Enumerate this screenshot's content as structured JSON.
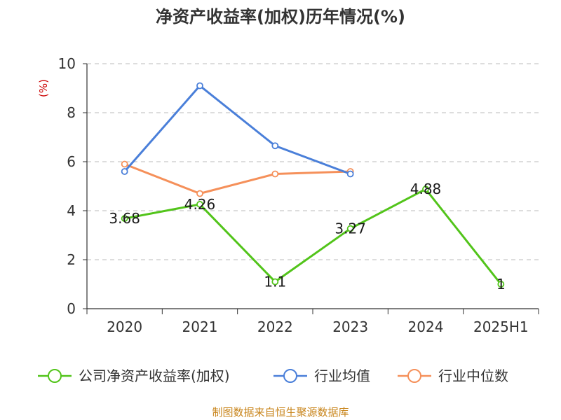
{
  "chart_data": {
    "type": "line",
    "title": "净资产收益率(加权)历年情况(%)",
    "ylabel": "(%)",
    "xlabel": "",
    "categories": [
      "2020",
      "2021",
      "2022",
      "2023",
      "2024",
      "2025H1"
    ],
    "ylim": [
      0,
      10
    ],
    "yticks": [
      0,
      2,
      4,
      6,
      8,
      10
    ],
    "grid": true,
    "legend_position": "bottom",
    "series": [
      {
        "name": "公司净资产收益率(加权)",
        "color": "#52c41a",
        "values": [
          3.68,
          4.26,
          1.1,
          3.27,
          4.88,
          1
        ],
        "labels": [
          "3.68",
          "4.26",
          "1.1",
          "3.27",
          "4.88",
          "1"
        ]
      },
      {
        "name": "行业均值",
        "color": "#4a7fd9",
        "values": [
          5.6,
          9.1,
          6.65,
          5.5,
          null,
          null
        ]
      },
      {
        "name": "行业中位数",
        "color": "#f5905a",
        "values": [
          5.9,
          4.7,
          5.5,
          5.6,
          null,
          null
        ]
      }
    ]
  },
  "source": "制图数据来自恒生聚源数据库"
}
